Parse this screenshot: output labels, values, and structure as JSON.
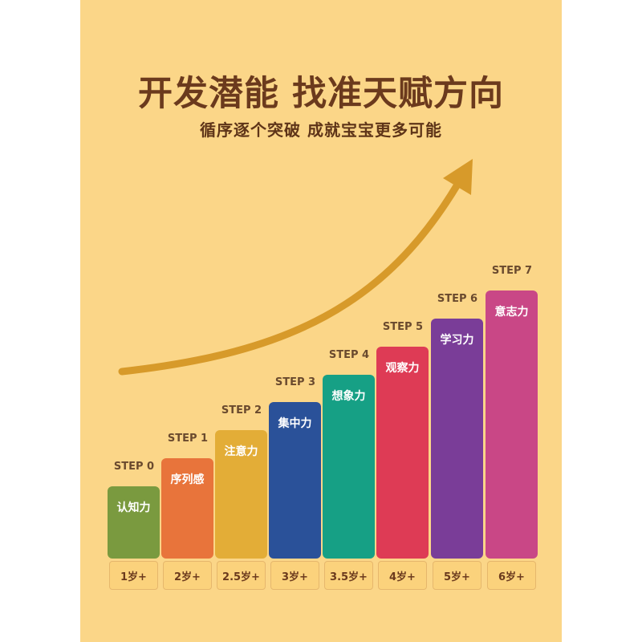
{
  "title": "开发潜能 找准天赋方向",
  "subtitle": "循序逐个突破 成就宝宝更多可能",
  "colors": {
    "background": "#fbd688",
    "title": "#6b3a1d",
    "arrow": "#d79a2a"
  },
  "steps": [
    {
      "step": "STEP 0",
      "label": "认知力",
      "age": "1岁+",
      "color": "#7a9a3f"
    },
    {
      "step": "STEP 1",
      "label": "序列感",
      "age": "2岁+",
      "color": "#e8743b"
    },
    {
      "step": "STEP 2",
      "label": "注意力",
      "age": "2.5岁+",
      "color": "#e3ad37"
    },
    {
      "step": "STEP 3",
      "label": "集中力",
      "age": "3岁+",
      "color": "#2a5199"
    },
    {
      "step": "STEP 4",
      "label": "想象力",
      "age": "3.5岁+",
      "color": "#16a085"
    },
    {
      "step": "STEP 5",
      "label": "观察力",
      "age": "4岁+",
      "color": "#de3b55"
    },
    {
      "step": "STEP 6",
      "label": "学习力",
      "age": "5岁+",
      "color": "#7a3d98"
    },
    {
      "step": "STEP 7",
      "label": "意志力",
      "age": "6岁+",
      "color": "#c94786"
    }
  ]
}
